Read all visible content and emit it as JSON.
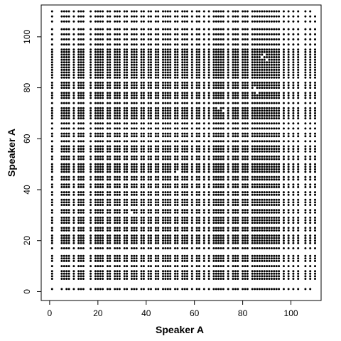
{
  "chart_data": {
    "type": "scatter",
    "title": "",
    "xlabel": "Speaker A",
    "ylabel": "Speaker A",
    "xlim": [
      -3.5,
      112.5
    ],
    "ylim": [
      -3.5,
      112.5
    ],
    "x_ticks": [
      0,
      20,
      40,
      60,
      80,
      100
    ],
    "y_ticks": [
      0,
      20,
      40,
      60,
      80,
      100
    ],
    "grid": false,
    "point_color": "#000000",
    "grid_values": [
      1,
      5,
      6,
      7,
      8,
      10,
      12,
      13,
      14,
      17,
      19,
      20,
      21,
      22,
      24,
      25,
      27,
      28,
      29,
      31,
      32,
      34,
      35,
      36,
      38,
      39,
      41,
      42,
      44,
      45,
      47,
      48,
      49,
      50,
      52,
      53,
      55,
      56,
      57,
      59,
      61,
      62,
      64,
      66,
      68,
      69,
      70,
      71,
      72,
      74,
      76,
      77,
      78,
      80,
      81,
      82,
      84,
      85,
      86,
      87,
      88,
      89,
      90,
      91,
      92,
      93,
      94,
      95,
      97,
      99,
      101,
      103,
      106,
      108,
      110
    ],
    "empty_points": [
      [
        6,
        1
      ],
      [
        110,
        110
      ],
      [
        110,
        1
      ],
      [
        32,
        30
      ],
      [
        33,
        29
      ],
      [
        34,
        31
      ],
      [
        52,
        46
      ],
      [
        53,
        47
      ],
      [
        54,
        46
      ],
      [
        70,
        72
      ],
      [
        71,
        73
      ],
      [
        72,
        71
      ],
      [
        88,
        92
      ],
      [
        89,
        93
      ],
      [
        90,
        91
      ],
      [
        84,
        79
      ],
      [
        85,
        80
      ],
      [
        86,
        78
      ]
    ]
  }
}
